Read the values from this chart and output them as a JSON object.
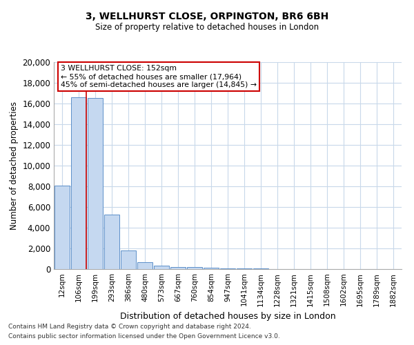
{
  "title1": "3, WELLHURST CLOSE, ORPINGTON, BR6 6BH",
  "title2": "Size of property relative to detached houses in London",
  "xlabel": "Distribution of detached houses by size in London",
  "ylabel": "Number of detached properties",
  "bin_labels": [
    "12sqm",
    "106sqm",
    "199sqm",
    "293sqm",
    "386sqm",
    "480sqm",
    "573sqm",
    "667sqm",
    "760sqm",
    "854sqm",
    "947sqm",
    "1041sqm",
    "1134sqm",
    "1228sqm",
    "1321sqm",
    "1415sqm",
    "1508sqm",
    "1602sqm",
    "1695sqm",
    "1789sqm",
    "1882sqm"
  ],
  "bar_heights": [
    8050,
    16600,
    16500,
    5300,
    1800,
    650,
    330,
    200,
    170,
    130,
    50,
    50,
    50,
    30,
    20,
    10,
    5,
    2,
    2,
    2,
    2
  ],
  "bar_color": "#c5d8f0",
  "bar_edge_color": "#5b8fc9",
  "grid_color": "#c8d8ea",
  "background_color": "#ffffff",
  "annotation_line1": "3 WELLHURST CLOSE: 152sqm",
  "annotation_line2": "← 55% of detached houses are smaller (17,964)",
  "annotation_line3": "45% of semi-detached houses are larger (14,845) →",
  "annotation_box_edgecolor": "#cc0000",
  "vline_x": 1.47,
  "vline_color": "#cc0000",
  "footer_line1": "Contains HM Land Registry data © Crown copyright and database right 2024.",
  "footer_line2": "Contains public sector information licensed under the Open Government Licence v3.0.",
  "ylim": [
    0,
    20000
  ],
  "yticks": [
    0,
    2000,
    4000,
    6000,
    8000,
    10000,
    12000,
    14000,
    16000,
    18000,
    20000
  ]
}
